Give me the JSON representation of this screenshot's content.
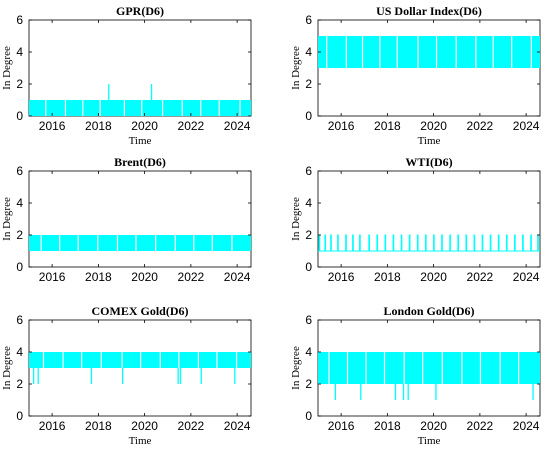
{
  "chart_data": [
    {
      "type": "line",
      "title": "GPR(D6)",
      "xlabel": "Time",
      "ylabel": "In Degree",
      "xlim": [
        2015,
        2024.6
      ],
      "ylim": [
        0,
        6
      ],
      "xticks": [
        "2016",
        "2018",
        "2020",
        "2022",
        "2024"
      ],
      "yticks": [
        "0",
        "2",
        "4",
        "6"
      ],
      "grid": false,
      "color": "#00FFFF",
      "series": [
        {
          "band_low": 0,
          "band_high": 1,
          "gaps": [
            2015.7,
            2016.55,
            2017.3,
            2018.05,
            2019.1,
            2019.85,
            2020.75,
            2021.6,
            2022.4,
            2023.2,
            2024.1
          ],
          "spikes": [
            {
              "x": 2018.45,
              "y": 2
            },
            {
              "x": 2020.3,
              "y": 2
            }
          ]
        }
      ]
    },
    {
      "type": "line",
      "title": "US Dollar Index(D6)",
      "xlabel": "Time",
      "ylabel": "In Degree",
      "xlim": [
        2015,
        2024.6
      ],
      "ylim": [
        0,
        6
      ],
      "xticks": [
        "2016",
        "2018",
        "2020",
        "2022",
        "2024"
      ],
      "yticks": [
        "0",
        "2",
        "4",
        "6"
      ],
      "grid": false,
      "color": "#00FFFF",
      "series": [
        {
          "band_low": 3,
          "band_high": 5,
          "gaps": [
            2015.35,
            2016.2,
            2016.9,
            2017.65,
            2018.4,
            2019.3,
            2020.1,
            2020.95,
            2021.8,
            2022.55,
            2023.35,
            2024.2
          ],
          "spikes": []
        }
      ]
    },
    {
      "type": "line",
      "title": "Brent(D6)",
      "xlabel": "",
      "ylabel": "In Degree",
      "xlim": [
        2015,
        2024.6
      ],
      "ylim": [
        0,
        6
      ],
      "xticks": [
        "2016",
        "2018",
        "2020",
        "2022",
        "2024"
      ],
      "yticks": [
        "0",
        "2",
        "4",
        "6"
      ],
      "grid": false,
      "color": "#00FFFF",
      "series": [
        {
          "band_low": 1,
          "band_high": 2,
          "gaps": [
            2015.5,
            2016.3,
            2017.1,
            2017.95,
            2018.8,
            2019.6,
            2020.45,
            2021.3,
            2022.1,
            2022.9,
            2023.75
          ],
          "spikes": []
        }
      ]
    },
    {
      "type": "line",
      "title": "WTI(D6)",
      "xlabel": "",
      "ylabel": "In Degree",
      "xlim": [
        2015,
        2024.6
      ],
      "ylim": [
        0,
        6
      ],
      "xticks": [
        "2016",
        "2018",
        "2020",
        "2022",
        "2024"
      ],
      "yticks": [
        "0",
        "2",
        "4",
        "6"
      ],
      "grid": false,
      "color": "#00FFFF",
      "series": [
        {
          "baseline": 1,
          "up_to": 2,
          "pulses": [
            2015.05,
            2015.3,
            2015.55,
            2015.85,
            2016.2,
            2016.5,
            2016.8,
            2017.2,
            2017.55,
            2017.9,
            2018.25,
            2018.6,
            2018.95,
            2019.3,
            2019.65,
            2020.0,
            2020.35,
            2020.7,
            2021.05,
            2021.4,
            2021.75,
            2022.1,
            2022.45,
            2022.8,
            2023.15,
            2023.5,
            2023.85,
            2024.2,
            2024.5
          ]
        }
      ]
    },
    {
      "type": "line",
      "title": "COMEX Gold(D6)",
      "xlabel": "Time",
      "ylabel": "In Degree",
      "xlim": [
        2015,
        2024.6
      ],
      "ylim": [
        0,
        6
      ],
      "xticks": [
        "2016",
        "2018",
        "2020",
        "2022",
        "2024"
      ],
      "yticks": [
        "0",
        "2",
        "4",
        "6"
      ],
      "grid": false,
      "color": "#00FFFF",
      "series": [
        {
          "band_low": 3,
          "band_high": 4,
          "gaps": [
            2015.6,
            2016.45,
            2017.25,
            2018.1,
            2019.0,
            2019.8,
            2020.65,
            2021.45,
            2022.3,
            2023.1,
            2023.95
          ],
          "spikes": [
            {
              "x": 2015.2,
              "y": 2
            },
            {
              "x": 2015.4,
              "y": 2
            },
            {
              "x": 2017.7,
              "y": 2
            },
            {
              "x": 2019.05,
              "y": 2
            },
            {
              "x": 2021.45,
              "y": 2
            },
            {
              "x": 2021.55,
              "y": 2
            },
            {
              "x": 2022.45,
              "y": 2
            },
            {
              "x": 2023.9,
              "y": 2
            }
          ]
        }
      ]
    },
    {
      "type": "line",
      "title": "London Gold(D6)",
      "xlabel": "Time",
      "ylabel": "In Degree",
      "xlim": [
        2015,
        2024.6
      ],
      "ylim": [
        0,
        6
      ],
      "xticks": [
        "2016",
        "2018",
        "2020",
        "2022",
        "2024"
      ],
      "yticks": [
        "0",
        "2",
        "4",
        "6"
      ],
      "grid": false,
      "color": "#00FFFF",
      "series": [
        {
          "band_low": 2,
          "band_high": 4,
          "gaps": [
            2015.45,
            2016.25,
            2017.05,
            2017.85,
            2018.7,
            2019.5,
            2020.35,
            2021.2,
            2022.0,
            2022.85,
            2023.65
          ],
          "spikes": [
            {
              "x": 2015.75,
              "y": 1
            },
            {
              "x": 2016.85,
              "y": 1
            },
            {
              "x": 2018.35,
              "y": 1
            },
            {
              "x": 2018.7,
              "y": 1
            },
            {
              "x": 2018.9,
              "y": 1
            },
            {
              "x": 2020.1,
              "y": 1
            },
            {
              "x": 2024.3,
              "y": 1
            }
          ]
        }
      ]
    }
  ]
}
